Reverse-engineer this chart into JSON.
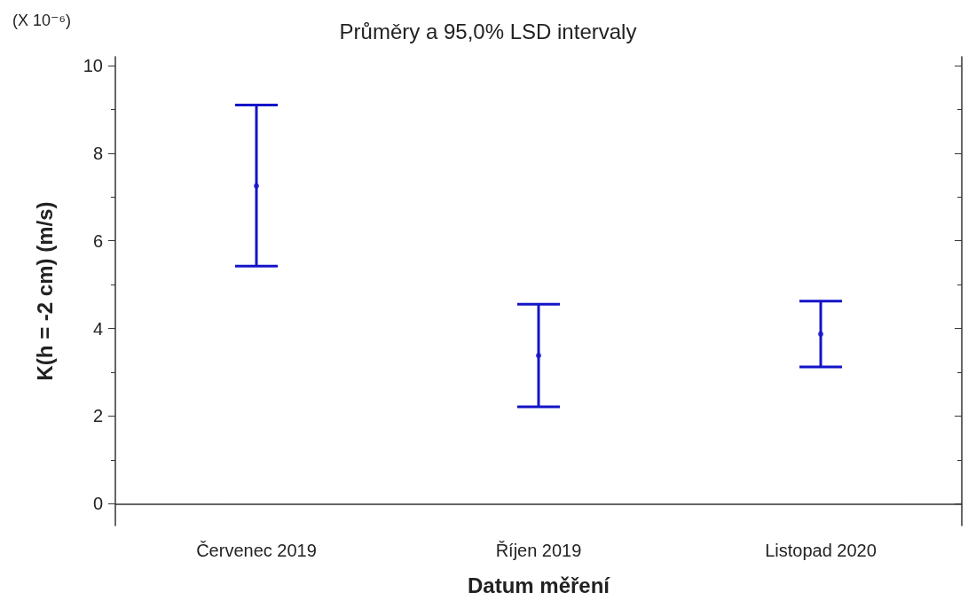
{
  "chart_data": {
    "type": "scatter",
    "title": "Průměry a 95,0% LSD intervaly",
    "xlabel": "Datum měření",
    "ylabel": "K(h = -2 cm) (m/s)",
    "annotations": [
      "(X 10⁻⁶)"
    ],
    "categories": [
      "Červenec 2019",
      "Říjen 2019",
      "Listopad 2020"
    ],
    "series": [
      {
        "color": "#1414c8",
        "values": [
          7.25,
          3.38,
          3.87
        ],
        "errors": [
          [
            5.42,
            9.1
          ],
          [
            2.21,
            4.55
          ],
          [
            3.12,
            4.62
          ]
        ]
      }
    ],
    "ylim": [
      -0.5,
      10.2
    ],
    "yticks": [
      0,
      2,
      4,
      6,
      8,
      10
    ],
    "grid": false,
    "marker": "circle"
  }
}
